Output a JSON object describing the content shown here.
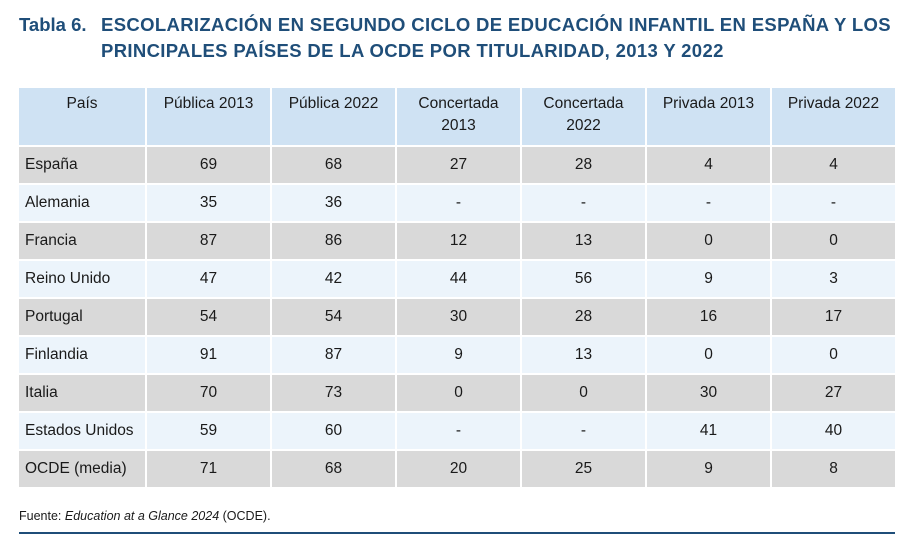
{
  "title": {
    "number": "Tabla 6.",
    "text": "ESCOLARIZACIÓN EN SEGUNDO CICLO DE EDUCACIÓN INFANTIL EN ESPAÑA Y LOS PRINCIPALES PAÍSES DE LA OCDE POR TITULARIDAD, 2013 Y 2022"
  },
  "table": {
    "headers": [
      "País",
      "Pública 2013",
      "Pública 2022",
      "Concertada 2013",
      "Concertada 2022",
      "Privada 2013",
      "Privada 2022"
    ],
    "rows": [
      [
        "España",
        "69",
        "68",
        "27",
        "28",
        "4",
        "4"
      ],
      [
        "Alemania",
        "35",
        "36",
        "-",
        "-",
        "-",
        "-"
      ],
      [
        "Francia",
        "87",
        "86",
        "12",
        "13",
        "0",
        "0"
      ],
      [
        "Reino Unido",
        "47",
        "42",
        "44",
        "56",
        "9",
        "3"
      ],
      [
        "Portugal",
        "54",
        "54",
        "30",
        "28",
        "16",
        "17"
      ],
      [
        "Finlandia",
        "91",
        "87",
        "9",
        "13",
        "0",
        "0"
      ],
      [
        "Italia",
        "70",
        "73",
        "0",
        "0",
        "30",
        "27"
      ],
      [
        "Estados Unidos",
        "59",
        "60",
        "-",
        "-",
        "41",
        "40"
      ],
      [
        "OCDE (media)",
        "71",
        "68",
        "20",
        "25",
        "9",
        "8"
      ]
    ]
  },
  "source": {
    "prefix": "Fuente: ",
    "publication": "Education at a Glance 2024",
    "suffix": " (OCDE)."
  }
}
